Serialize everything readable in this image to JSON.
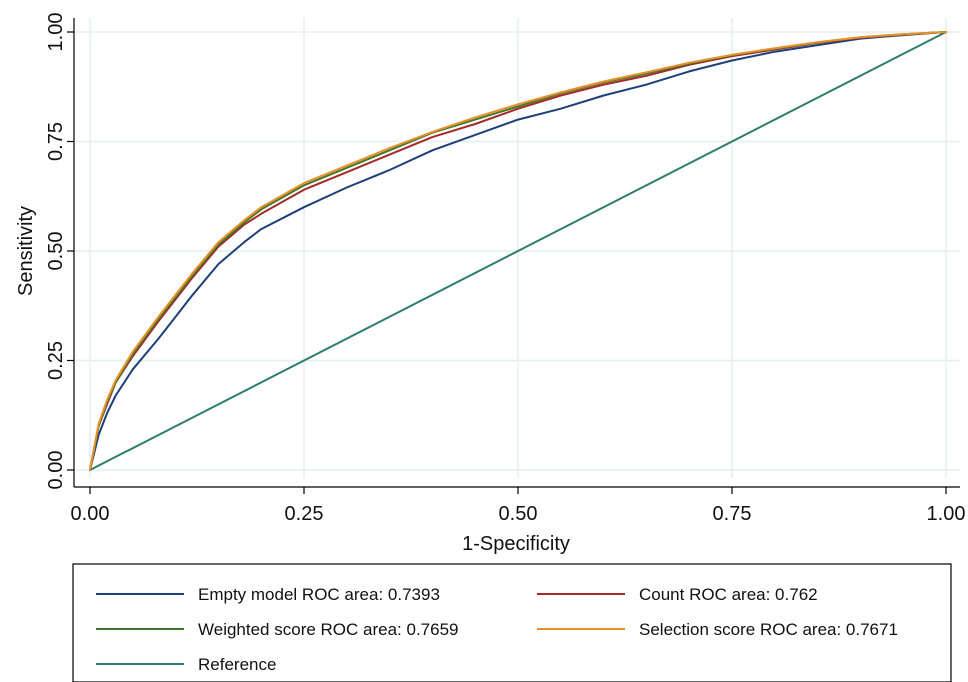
{
  "chart_data": {
    "type": "line",
    "title": "",
    "xlabel": "1-Specificity",
    "ylabel": "Sensitivity",
    "xlim": [
      0,
      1
    ],
    "ylim": [
      0,
      1
    ],
    "x_ticks": [
      "0.00",
      "0.25",
      "0.50",
      "0.75",
      "1.00"
    ],
    "y_ticks": [
      "0.00",
      "0.25",
      "0.50",
      "0.75",
      "1.00"
    ],
    "grid": true,
    "legend_position": "bottom",
    "series": [
      {
        "name": "Empty model ROC area: 0.7393",
        "color": "#1f3f7a",
        "points": [
          [
            0,
            0
          ],
          [
            0.01,
            0.08
          ],
          [
            0.02,
            0.13
          ],
          [
            0.03,
            0.17
          ],
          [
            0.05,
            0.23
          ],
          [
            0.08,
            0.3
          ],
          [
            0.1,
            0.35
          ],
          [
            0.12,
            0.4
          ],
          [
            0.15,
            0.47
          ],
          [
            0.18,
            0.52
          ],
          [
            0.2,
            0.55
          ],
          [
            0.25,
            0.6
          ],
          [
            0.3,
            0.645
          ],
          [
            0.35,
            0.685
          ],
          [
            0.4,
            0.73
          ],
          [
            0.45,
            0.765
          ],
          [
            0.5,
            0.8
          ],
          [
            0.55,
            0.825
          ],
          [
            0.6,
            0.855
          ],
          [
            0.65,
            0.88
          ],
          [
            0.7,
            0.91
          ],
          [
            0.75,
            0.935
          ],
          [
            0.8,
            0.955
          ],
          [
            0.85,
            0.97
          ],
          [
            0.9,
            0.985
          ],
          [
            0.95,
            0.993
          ],
          [
            1,
            1
          ]
        ]
      },
      {
        "name": "Count ROC area: 0.762",
        "color": "#a52a2a",
        "points": [
          [
            0,
            0
          ],
          [
            0.01,
            0.1
          ],
          [
            0.02,
            0.15
          ],
          [
            0.03,
            0.2
          ],
          [
            0.05,
            0.26
          ],
          [
            0.08,
            0.34
          ],
          [
            0.1,
            0.39
          ],
          [
            0.12,
            0.44
          ],
          [
            0.15,
            0.51
          ],
          [
            0.18,
            0.56
          ],
          [
            0.2,
            0.585
          ],
          [
            0.25,
            0.64
          ],
          [
            0.3,
            0.68
          ],
          [
            0.35,
            0.72
          ],
          [
            0.4,
            0.76
          ],
          [
            0.45,
            0.79
          ],
          [
            0.5,
            0.825
          ],
          [
            0.55,
            0.855
          ],
          [
            0.6,
            0.88
          ],
          [
            0.65,
            0.9
          ],
          [
            0.7,
            0.925
          ],
          [
            0.75,
            0.945
          ],
          [
            0.8,
            0.96
          ],
          [
            0.85,
            0.975
          ],
          [
            0.9,
            0.987
          ],
          [
            0.95,
            0.994
          ],
          [
            1,
            1
          ]
        ]
      },
      {
        "name": "Weighted score ROC area: 0.7659",
        "color": "#3f7a2a",
        "points": [
          [
            0,
            0
          ],
          [
            0.01,
            0.1
          ],
          [
            0.02,
            0.155
          ],
          [
            0.03,
            0.2
          ],
          [
            0.05,
            0.265
          ],
          [
            0.08,
            0.345
          ],
          [
            0.1,
            0.395
          ],
          [
            0.12,
            0.445
          ],
          [
            0.15,
            0.515
          ],
          [
            0.18,
            0.565
          ],
          [
            0.2,
            0.595
          ],
          [
            0.25,
            0.65
          ],
          [
            0.3,
            0.69
          ],
          [
            0.35,
            0.73
          ],
          [
            0.4,
            0.77
          ],
          [
            0.45,
            0.8
          ],
          [
            0.5,
            0.83
          ],
          [
            0.55,
            0.86
          ],
          [
            0.6,
            0.885
          ],
          [
            0.65,
            0.905
          ],
          [
            0.7,
            0.928
          ],
          [
            0.75,
            0.947
          ],
          [
            0.8,
            0.962
          ],
          [
            0.85,
            0.976
          ],
          [
            0.9,
            0.988
          ],
          [
            0.95,
            0.995
          ],
          [
            1,
            1
          ]
        ]
      },
      {
        "name": "Selection score ROC area: 0.7671",
        "color": "#e8902a",
        "points": [
          [
            0,
            0
          ],
          [
            0.01,
            0.105
          ],
          [
            0.02,
            0.16
          ],
          [
            0.03,
            0.205
          ],
          [
            0.05,
            0.27
          ],
          [
            0.08,
            0.35
          ],
          [
            0.1,
            0.4
          ],
          [
            0.12,
            0.45
          ],
          [
            0.15,
            0.52
          ],
          [
            0.18,
            0.57
          ],
          [
            0.2,
            0.6
          ],
          [
            0.25,
            0.655
          ],
          [
            0.3,
            0.695
          ],
          [
            0.35,
            0.735
          ],
          [
            0.4,
            0.772
          ],
          [
            0.45,
            0.805
          ],
          [
            0.5,
            0.835
          ],
          [
            0.55,
            0.862
          ],
          [
            0.6,
            0.887
          ],
          [
            0.65,
            0.908
          ],
          [
            0.7,
            0.93
          ],
          [
            0.75,
            0.948
          ],
          [
            0.8,
            0.963
          ],
          [
            0.85,
            0.977
          ],
          [
            0.9,
            0.988
          ],
          [
            0.95,
            0.995
          ],
          [
            1,
            1
          ]
        ]
      },
      {
        "name": "Reference",
        "color": "#2e7d6e",
        "points": [
          [
            0,
            0
          ],
          [
            1,
            1
          ]
        ]
      }
    ]
  }
}
